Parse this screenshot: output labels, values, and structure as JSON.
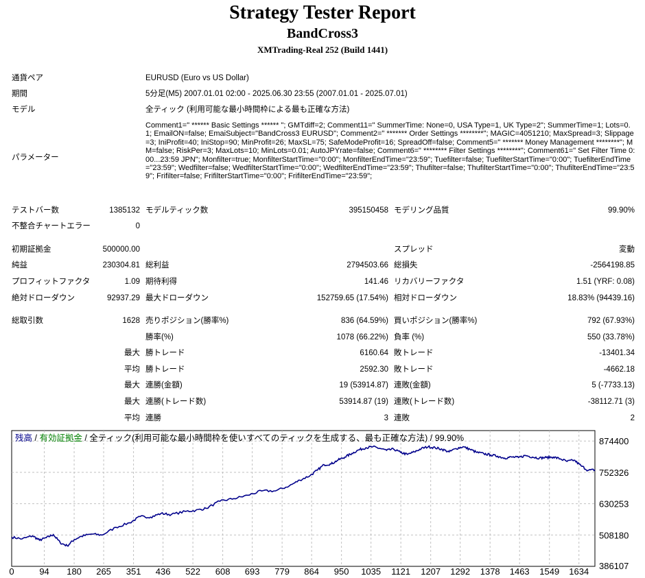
{
  "header": {
    "title": "Strategy Tester Report",
    "subtitle": "BandCross3",
    "server": "XMTrading-Real 252 (Build 1441)"
  },
  "info": {
    "symbol_label": "通貨ペア",
    "symbol_value": "EURUSD (Euro vs US Dollar)",
    "period_label": "期間",
    "period_value": "5分足(M5) 2007.01.01 02:00 - 2025.06.30 23:55 (2007.01.01 - 2025.07.01)",
    "model_label": "モデル",
    "model_value": "全ティック (利用可能な最小時間枠による最も正確な方法)",
    "params_label": "パラメーター",
    "params_value": "Comment1=\" ****** Basic Settings ****** \"; GMTdiff=2; Comment11=\" SummerTime: None=0, USA Type=1, UK Type=2\"; SummerTime=1; Lots=0.1; EmailON=false; EmaiSubject=\"BandCross3 EURUSD\"; Comment2=\" ******* Order Settings ********\"; MAGIC=4051210; MaxSpread=3; Slippage=3; IniProfit=40; IniStop=90; MinProfit=26; MaxSL=75; SafeModeProfit=16; SpreadOff=false; Comment5=\" ******* Money Management ********\"; MM=false; RiskPer=3; MaxLots=10; MinLots=0.01; AutoJPYrate=false; Comment6=\" ******** Filter Settings ********\"; Comment61=\" Set Filter Time 0:00...23:59 JPN\"; Monfilter=true; MonfilterStartTime=\"0:00\"; MonfilterEndTime=\"23:59\"; Tuefilter=false; TuefilterStartTime=\"0:00\"; TuefilterEndTime=\"23:59\"; Wedfilter=false; WedfilterStartTime=\"0:00\"; WedfilterEndTime=\"23:59\"; Thufilter=false; ThufilterStartTime=\"0:00\"; ThufilterEndTime=\"23:59\"; Frifilter=false; FrifilterStartTime=\"0:00\"; FrifilterEndTime=\"23:59\";"
  },
  "stats": {
    "bars_label": "テストバー数",
    "bars_value": "1385132",
    "ticks_label": "モデルティック数",
    "ticks_value": "395150458",
    "quality_label": "モデリング品質",
    "quality_value": "99.90%",
    "mismatch_label": "不整合チャートエラー",
    "mismatch_value": "0",
    "deposit_label": "初期証拠金",
    "deposit_value": "500000.00",
    "spread_label": "スプレッド",
    "spread_value": "変動",
    "netprofit_label": "純益",
    "netprofit_value": "230304.81",
    "grossprofit_label": "総利益",
    "grossprofit_value": "2794503.66",
    "grossloss_label": "総損失",
    "grossloss_value": "-2564198.85",
    "pf_label": "プロフィットファクタ",
    "pf_value": "1.09",
    "expected_label": "期待利得",
    "expected_value": "141.46",
    "recovery_label": "リカバリーファクタ",
    "recovery_value": "1.51 (YRF: 0.08)",
    "absdd_label": "絶対ドローダウン",
    "absdd_value": "92937.29",
    "maxdd_label": "最大ドローダウン",
    "maxdd_value": "152759.65 (17.54%)",
    "reldd_label": "相対ドローダウン",
    "reldd_value": "18.83% (94439.16)",
    "trades_label": "総取引数",
    "trades_value": "1628",
    "short_label": "売りポジション(勝率%)",
    "short_value": "836 (64.59%)",
    "long_label": "買いポジション(勝率%)",
    "long_value": "792 (67.93%)",
    "winrate_label": "勝率(%)",
    "winrate_value": "1078 (66.22%)",
    "lossrate_label": "負率 (%)",
    "lossrate_value": "550 (33.78%)",
    "max1": "最大",
    "bigwin_label": "勝トレード",
    "bigwin_value": "6160.64",
    "bigloss_label": "敗トレード",
    "bigloss_value": "-13401.34",
    "avg1": "平均",
    "avgwin_label": "勝トレード",
    "avgwin_value": "2592.30",
    "avgloss_label": "敗トレード",
    "avgloss_value": "-4662.18",
    "max2": "最大",
    "conswin_amt_label": "連勝(金額)",
    "conswin_amt_value": "19 (53914.87)",
    "consloss_amt_label": "連敗(金額)",
    "consloss_amt_value": "5 (-7733.13)",
    "max3": "最大",
    "conswin_cnt_label": "連勝(トレード数)",
    "conswin_cnt_value": "53914.87 (19)",
    "consloss_cnt_label": "連敗(トレード数)",
    "consloss_cnt_value": "-38112.71 (3)",
    "avg2": "平均",
    "avgconswin_label": "連勝",
    "avgconswin_value": "3",
    "avgconsloss_label": "連敗",
    "avgconsloss_value": "2"
  },
  "chart_data": {
    "type": "line",
    "legend": {
      "balance": "残高",
      "sep1": " / ",
      "equity": "有効証拠金",
      "sep2": " / ",
      "rest": "全ティック(利用可能な最小時間枠を使いすべてのティックを生成する、最も正確な方法) / 99.90%"
    },
    "x_ticks": [
      "0",
      "94",
      "180",
      "265",
      "351",
      "436",
      "522",
      "608",
      "693",
      "779",
      "864",
      "950",
      "1035",
      "1121",
      "1207",
      "1292",
      "1378",
      "1463",
      "1549",
      "1634"
    ],
    "y_ticks": [
      "386107",
      "508180",
      "630253",
      "752326",
      "874400"
    ],
    "xlim": [
      0,
      1680
    ],
    "ylim": [
      386107,
      915000
    ],
    "grid": true,
    "colors": {
      "line": "#00008b",
      "grid": "#c0c0c0",
      "frame": "#000000"
    },
    "series": [
      {
        "name": "残高",
        "x": [
          0,
          30,
          60,
          80,
          100,
          120,
          140,
          160,
          180,
          200,
          230,
          260,
          300,
          340,
          370,
          400,
          430,
          460,
          500,
          530,
          560,
          600,
          640,
          680,
          720,
          760,
          800,
          830,
          860,
          880,
          900,
          920,
          940,
          960,
          980,
          1000,
          1020,
          1040,
          1060,
          1080,
          1100,
          1120,
          1140,
          1160,
          1180,
          1200,
          1220,
          1240,
          1260,
          1280,
          1300,
          1320,
          1340,
          1360,
          1380,
          1400,
          1420,
          1440,
          1460,
          1480,
          1500,
          1520,
          1540,
          1560,
          1580,
          1600,
          1620,
          1640,
          1660,
          1680
        ],
        "y": [
          500000,
          493000,
          505000,
          488000,
          498000,
          510000,
          478000,
          466000,
          490000,
          503000,
          512000,
          508000,
          538000,
          556000,
          580000,
          578000,
          592000,
          588000,
          600000,
          604000,
          612000,
          640000,
          650000,
          663000,
          680000,
          680000,
          700000,
          722000,
          740000,
          760000,
          782000,
          785000,
          800000,
          812000,
          826000,
          840000,
          848000,
          852000,
          846000,
          838000,
          843000,
          830000,
          822000,
          832000,
          845000,
          852000,
          848000,
          842000,
          832000,
          845000,
          852000,
          842000,
          830000,
          825000,
          820000,
          815000,
          808000,
          812000,
          810000,
          818000,
          812000,
          808000,
          810000,
          812000,
          805000,
          795000,
          800000,
          778000,
          760000,
          762000
        ]
      }
    ]
  }
}
